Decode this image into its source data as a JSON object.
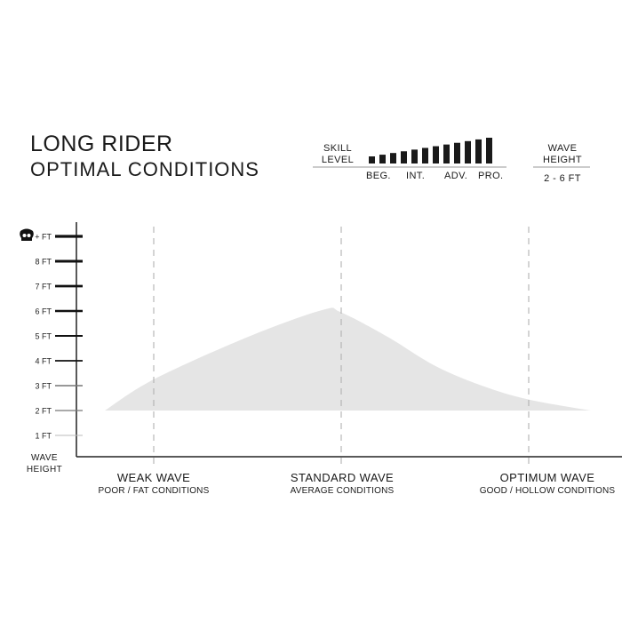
{
  "header": {
    "title": "LONG RIDER",
    "subtitle": "OPTIMAL CONDITIONS"
  },
  "skill": {
    "label_line1": "SKILL",
    "label_line2": "LEVEL",
    "bar_count": 12,
    "levels": [
      "BEG.",
      "INT.",
      "ADV.",
      "PRO."
    ],
    "bar_color": "#1a1a1a"
  },
  "wave_height_box": {
    "label_line1": "WAVE",
    "label_line2": "HEIGHT",
    "value": "2 - 6 FT"
  },
  "chart_data": {
    "type": "area",
    "ylabel_line1": "WAVE",
    "ylabel_line2": "HEIGHT",
    "ylim": [
      0,
      9
    ],
    "yticks": [
      {
        "value": 1,
        "label": "1 FT"
      },
      {
        "value": 2,
        "label": "2 FT"
      },
      {
        "value": 3,
        "label": "3 FT"
      },
      {
        "value": 4,
        "label": "4 FT"
      },
      {
        "value": 5,
        "label": "5 FT"
      },
      {
        "value": 6,
        "label": "6 FT"
      },
      {
        "value": 7,
        "label": "7 FT"
      },
      {
        "value": 8,
        "label": "8 FT"
      },
      {
        "value": 9,
        "label": "+ FT",
        "icon": "skull-icon"
      }
    ],
    "categories": [
      {
        "x": 0,
        "label": "WEAK WAVE",
        "sublabel": "POOR / FAT CONDITIONS"
      },
      {
        "x": 1,
        "label": "STANDARD WAVE",
        "sublabel": "AVERAGE CONDITIONS"
      },
      {
        "x": 2,
        "label": "OPTIMUM WAVE",
        "sublabel": "GOOD / HOLLOW CONDITIONS"
      }
    ],
    "baseline": 2,
    "curve": [
      {
        "x": -0.26,
        "y": 2.0
      },
      {
        "x": 0,
        "y": 3.25
      },
      {
        "x": 0.5,
        "y": 4.95
      },
      {
        "x": 0.9,
        "y": 6.04
      },
      {
        "x": 1,
        "y": 5.94
      },
      {
        "x": 1.25,
        "y": 4.95
      },
      {
        "x": 1.5,
        "y": 3.8
      },
      {
        "x": 1.75,
        "y": 3.0
      },
      {
        "x": 2,
        "y": 2.44
      },
      {
        "x": 2.33,
        "y": 2.0
      }
    ],
    "fill_color": "#e5e5e5",
    "grid": false
  }
}
